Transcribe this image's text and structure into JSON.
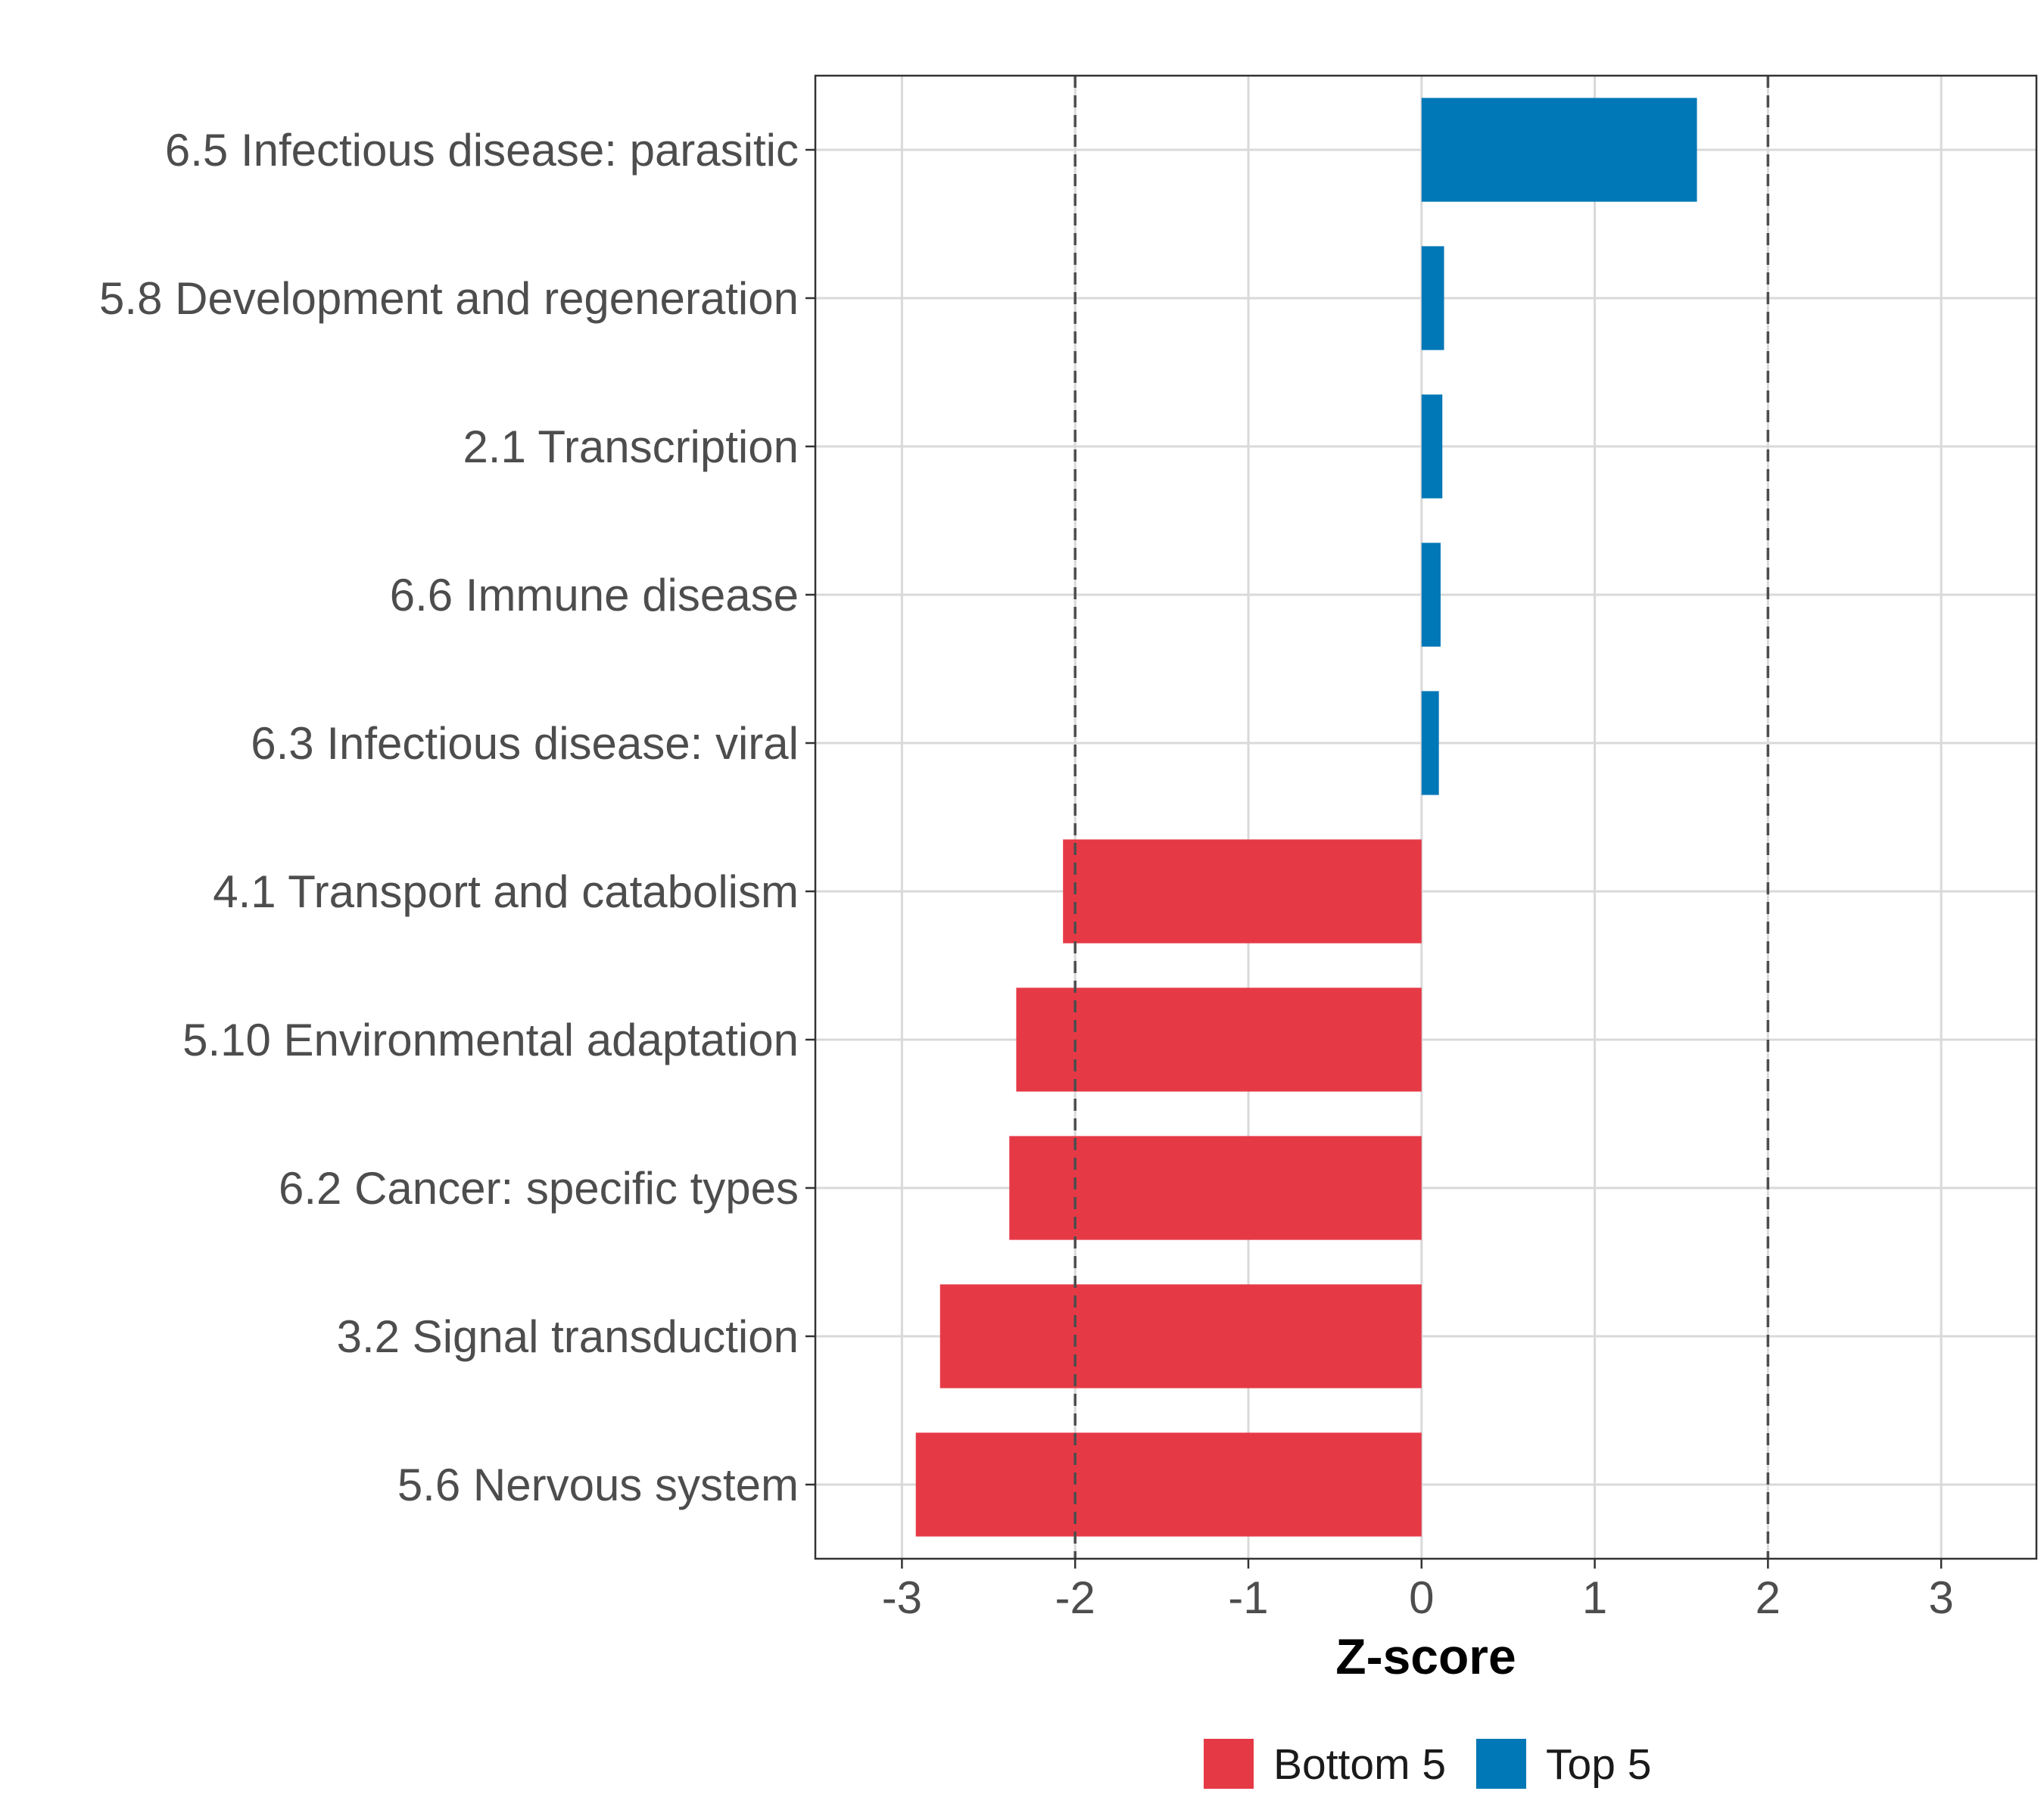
{
  "chart_data": {
    "type": "bar",
    "orientation": "horizontal",
    "title": "",
    "xlabel": "Z-score",
    "ylabel": "",
    "xlim": [
      -3.5,
      3.55
    ],
    "xticks": [
      -3,
      -2,
      -1,
      0,
      1,
      2,
      3
    ],
    "xtick_labels": [
      "-3",
      "-2",
      "-1",
      "0",
      "1",
      "2",
      "3"
    ],
    "reference_lines": [
      -2,
      2
    ],
    "grid": true,
    "legend_position": "bottom",
    "categories": [
      "6.5 Infectious disease: parasitic",
      "5.8 Development and regeneration",
      "2.1 Transcription",
      "6.6 Immune disease",
      "6.3 Infectious disease: viral",
      "4.1 Transport and catabolism",
      "5.10 Environmental adaptation",
      "6.2 Cancer: specific types",
      "3.2 Signal transduction",
      "5.6 Nervous system"
    ],
    "values": [
      1.59,
      0.13,
      0.12,
      0.11,
      0.1,
      -2.07,
      -2.34,
      -2.38,
      -2.78,
      -2.92
    ],
    "groups": [
      "Top 5",
      "Top 5",
      "Top 5",
      "Top 5",
      "Top 5",
      "Bottom 5",
      "Bottom 5",
      "Bottom 5",
      "Bottom 5",
      "Bottom 5"
    ],
    "series": [
      {
        "name": "Bottom 5",
        "color": "#e63946"
      },
      {
        "name": "Top 5",
        "color": "#0077b6"
      }
    ]
  }
}
